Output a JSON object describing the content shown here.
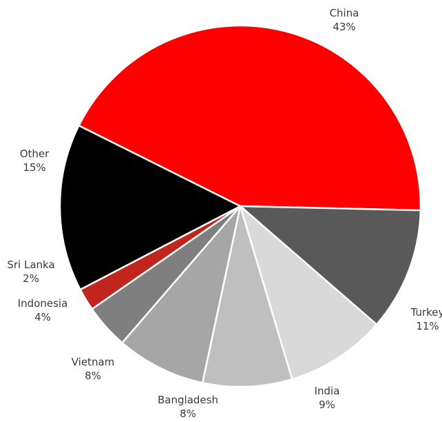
{
  "chart_data": {
    "type": "pie",
    "title": "",
    "slices": [
      {
        "label": "China",
        "value": 43,
        "value_label": "43%",
        "color": "#ff0000"
      },
      {
        "label": "Turkey",
        "value": 11,
        "value_label": "11%",
        "color": "#595959"
      },
      {
        "label": "India",
        "value": 9,
        "value_label": "9%",
        "color": "#d9d9d9"
      },
      {
        "label": "Bangladesh",
        "value": 8,
        "value_label": "8%",
        "color": "#bfbfbf"
      },
      {
        "label": "Vietnam",
        "value": 8,
        "value_label": "8%",
        "color": "#a6a6a6"
      },
      {
        "label": "Indonesia",
        "value": 4,
        "value_label": "4%",
        "color": "#7f7f7f"
      },
      {
        "label": "Sri Lanka",
        "value": 2,
        "value_label": "2%",
        "color": "#c0251e"
      },
      {
        "label": "Other",
        "value": 15,
        "value_label": "15%",
        "color": "#000000"
      }
    ],
    "legend": "none",
    "labels": "outside"
  }
}
